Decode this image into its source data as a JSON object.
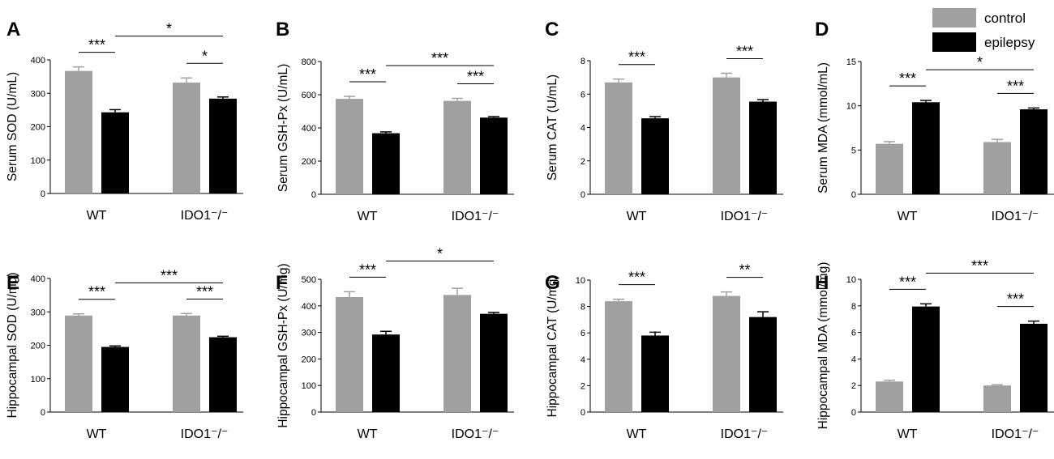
{
  "legend": [
    {
      "name": "control",
      "color": "#a0a0a0"
    },
    {
      "name": "epilepsy",
      "color": "#000000"
    }
  ],
  "colors": {
    "control": "#a0a0a0",
    "epilepsy": "#000000",
    "axis": "#000000"
  },
  "chart_data": [
    {
      "panel": "A",
      "type": "bar",
      "ylabel": "Serum SOD (U/mL)",
      "categories": [
        "WT",
        "IDO1⁻/⁻"
      ],
      "ylim": [
        0,
        400
      ],
      "yticks": [
        0,
        100,
        200,
        300,
        400
      ],
      "series": [
        {
          "name": "control",
          "values": [
            367,
            332
          ],
          "errors": [
            12,
            14
          ]
        },
        {
          "name": "epilepsy",
          "values": [
            243,
            284
          ],
          "errors": [
            8,
            5
          ]
        }
      ],
      "annotations": [
        {
          "text": "***",
          "from": "WT:control",
          "to": "WT:epilepsy"
        },
        {
          "text": "*",
          "from": "WT:epilepsy",
          "to": "IDO1:epilepsy"
        },
        {
          "text": "*",
          "from": "IDO1:control",
          "to": "IDO1:epilepsy"
        }
      ]
    },
    {
      "panel": "B",
      "type": "bar",
      "ylabel": "Serum GSH-Px (U/mL)",
      "categories": [
        "WT",
        "IDO1⁻/⁻"
      ],
      "ylim": [
        0,
        800
      ],
      "yticks": [
        0,
        200,
        400,
        600,
        800
      ],
      "series": [
        {
          "name": "control",
          "values": [
            575,
            563
          ],
          "errors": [
            15,
            15
          ]
        },
        {
          "name": "epilepsy",
          "values": [
            368,
            462
          ],
          "errors": [
            8,
            6
          ]
        }
      ],
      "annotations": [
        {
          "text": "***",
          "from": "WT:control",
          "to": "WT:epilepsy"
        },
        {
          "text": "***",
          "from": "WT:epilepsy",
          "to": "IDO1:epilepsy"
        },
        {
          "text": "***",
          "from": "IDO1:control",
          "to": "IDO1:epilepsy"
        }
      ]
    },
    {
      "panel": "C",
      "type": "bar",
      "ylabel": "Serum CAT (U/mL)",
      "categories": [
        "WT",
        "IDO1⁻/⁻"
      ],
      "ylim": [
        0,
        8
      ],
      "yticks": [
        0,
        2,
        4,
        6,
        8
      ],
      "series": [
        {
          "name": "control",
          "values": [
            6.7,
            7.0
          ],
          "errors": [
            0.2,
            0.25
          ]
        },
        {
          "name": "epilepsy",
          "values": [
            4.55,
            5.55
          ],
          "errors": [
            0.1,
            0.12
          ]
        }
      ],
      "annotations": [
        {
          "text": "***",
          "from": "WT:control",
          "to": "WT:epilepsy"
        },
        {
          "text": "***",
          "from": "IDO1:control",
          "to": "IDO1:epilepsy"
        }
      ]
    },
    {
      "panel": "D",
      "type": "bar",
      "ylabel": "Serum MDA (mmol/mL)",
      "categories": [
        "WT",
        "IDO1⁻/⁻"
      ],
      "ylim": [
        0,
        15
      ],
      "yticks": [
        0,
        5,
        10,
        15
      ],
      "series": [
        {
          "name": "control",
          "values": [
            5.7,
            5.9
          ],
          "errors": [
            0.25,
            0.3
          ]
        },
        {
          "name": "epilepsy",
          "values": [
            10.4,
            9.6
          ],
          "errors": [
            0.2,
            0.15
          ]
        }
      ],
      "annotations": [
        {
          "text": "***",
          "from": "WT:control",
          "to": "WT:epilepsy"
        },
        {
          "text": "*",
          "from": "WT:epilepsy",
          "to": "IDO1:epilepsy"
        },
        {
          "text": "***",
          "from": "IDO1:control",
          "to": "IDO1:epilepsy"
        }
      ]
    },
    {
      "panel": "E",
      "type": "bar",
      "ylabel": "Hippocampal SOD (U/mg)",
      "categories": [
        "WT",
        "IDO1⁻/⁻"
      ],
      "ylim": [
        0,
        400
      ],
      "yticks": [
        0,
        100,
        200,
        300,
        400
      ],
      "series": [
        {
          "name": "control",
          "values": [
            289,
            289
          ],
          "errors": [
            5,
            6
          ]
        },
        {
          "name": "epilepsy",
          "values": [
            195,
            224
          ],
          "errors": [
            3,
            3
          ]
        }
      ],
      "annotations": [
        {
          "text": "***",
          "from": "WT:control",
          "to": "WT:epilepsy"
        },
        {
          "text": "***",
          "from": "WT:epilepsy",
          "to": "IDO1:epilepsy"
        },
        {
          "text": "***",
          "from": "IDO1:control",
          "to": "IDO1:epilepsy"
        }
      ]
    },
    {
      "panel": "F",
      "type": "bar",
      "ylabel": "Hippocampal GSH-Px (U/mg)",
      "categories": [
        "WT",
        "IDO1⁻/⁻"
      ],
      "ylim": [
        0,
        500
      ],
      "yticks": [
        0,
        100,
        200,
        300,
        400,
        500
      ],
      "series": [
        {
          "name": "control",
          "values": [
            433,
            441
          ],
          "errors": [
            20,
            25
          ]
        },
        {
          "name": "epilepsy",
          "values": [
            292,
            370
          ],
          "errors": [
            12,
            5
          ]
        }
      ],
      "annotations": [
        {
          "text": "***",
          "from": "WT:control",
          "to": "WT:epilepsy"
        },
        {
          "text": "*",
          "from": "WT:epilepsy",
          "to": "IDO1:epilepsy"
        }
      ]
    },
    {
      "panel": "G",
      "type": "bar",
      "ylabel": "Hippocampal CAT (U/mg)",
      "categories": [
        "WT",
        "IDO1⁻/⁻"
      ],
      "ylim": [
        0,
        10
      ],
      "yticks": [
        0,
        2,
        4,
        6,
        8,
        10
      ],
      "series": [
        {
          "name": "control",
          "values": [
            8.4,
            8.8
          ],
          "errors": [
            0.15,
            0.3
          ]
        },
        {
          "name": "epilepsy",
          "values": [
            5.8,
            7.2
          ],
          "errors": [
            0.25,
            0.4
          ]
        }
      ],
      "annotations": [
        {
          "text": "***",
          "from": "WT:control",
          "to": "WT:epilepsy"
        },
        {
          "text": "**",
          "from": "IDO1:control",
          "to": "IDO1:epilepsy"
        }
      ]
    },
    {
      "panel": "H",
      "type": "bar",
      "ylabel": "Hippocampal MDA (mmol/mg)",
      "categories": [
        "WT",
        "IDO1⁻/⁻"
      ],
      "ylim": [
        0,
        10
      ],
      "yticks": [
        0,
        2,
        4,
        6,
        8,
        10
      ],
      "series": [
        {
          "name": "control",
          "values": [
            2.3,
            2.0
          ],
          "errors": [
            0.1,
            0.05
          ]
        },
        {
          "name": "epilepsy",
          "values": [
            7.95,
            6.65
          ],
          "errors": [
            0.2,
            0.2
          ]
        }
      ],
      "annotations": [
        {
          "text": "***",
          "from": "WT:control",
          "to": "WT:epilepsy"
        },
        {
          "text": "***",
          "from": "WT:epilepsy",
          "to": "IDO1:epilepsy"
        },
        {
          "text": "***",
          "from": "IDO1:control",
          "to": "IDO1:epilepsy"
        }
      ]
    }
  ]
}
